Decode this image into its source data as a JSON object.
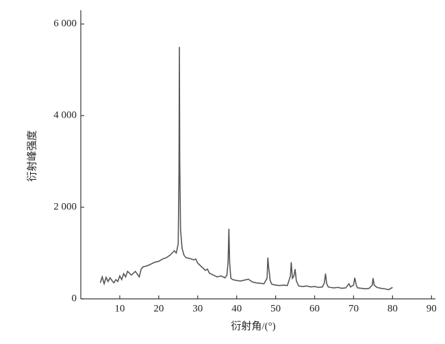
{
  "chart_data": {
    "type": "line",
    "xlabel": "衍射角/(°)",
    "ylabel": "衍射峰强度",
    "xlim": [
      0,
      91
    ],
    "xticks": [
      10,
      20,
      30,
      40,
      50,
      60,
      70,
      80,
      90
    ],
    "ylim": [
      0,
      6300
    ],
    "yticks": [
      {
        "value": 0,
        "label": "0"
      },
      {
        "value": 2000,
        "label": "2 000"
      },
      {
        "value": 4000,
        "label": "4 000"
      },
      {
        "value": 6000,
        "label": "6 000"
      }
    ],
    "grid": false,
    "series": [
      {
        "color": "#555555",
        "x": [
          5,
          5.5,
          6,
          6.5,
          7,
          7.5,
          8,
          8.5,
          9,
          9.5,
          10,
          10.5,
          11,
          11.5,
          12,
          13,
          14,
          15,
          15.5,
          16,
          17,
          18,
          19,
          20,
          21,
          22,
          23,
          24,
          24.5,
          25,
          25.2,
          25.3,
          25.4,
          25.6,
          26,
          26.5,
          27,
          28,
          29,
          29.5,
          30,
          31,
          32,
          32.5,
          33,
          34,
          35,
          36,
          37,
          37.5,
          37.8,
          38,
          38.2,
          38.5,
          39,
          40,
          41,
          42,
          43,
          44,
          45,
          46,
          47,
          47.8,
          48,
          48.2,
          48.6,
          49,
          50,
          51,
          52,
          53,
          53.8,
          54,
          54.3,
          54.7,
          55,
          55.3,
          55.8,
          56,
          57,
          58,
          59,
          60,
          61,
          62,
          62.5,
          62.8,
          63.1,
          63.5,
          64,
          65,
          66,
          67,
          68,
          68.8,
          69.2,
          70,
          70.3,
          70.7,
          71,
          72,
          73,
          74,
          74.8,
          75,
          75.3,
          76,
          77,
          78,
          79,
          80
        ],
        "values": [
          350,
          480,
          330,
          470,
          380,
          460,
          400,
          350,
          420,
          380,
          500,
          420,
          550,
          480,
          600,
          520,
          600,
          480,
          650,
          700,
          720,
          760,
          800,
          820,
          870,
          900,
          960,
          1050,
          1000,
          1200,
          2800,
          5500,
          3000,
          1500,
          1100,
          950,
          900,
          880,
          850,
          870,
          780,
          700,
          620,
          650,
          560,
          520,
          480,
          500,
          460,
          520,
          800,
          1530,
          800,
          450,
          420,
          400,
          390,
          410,
          430,
          370,
          350,
          340,
          330,
          450,
          900,
          700,
          400,
          320,
          300,
          290,
          300,
          290,
          500,
          800,
          450,
          500,
          650,
          400,
          300,
          280,
          270,
          280,
          260,
          270,
          250,
          260,
          350,
          550,
          330,
          260,
          250,
          240,
          250,
          230,
          240,
          330,
          260,
          300,
          460,
          300,
          240,
          230,
          220,
          230,
          300,
          450,
          300,
          250,
          230,
          220,
          200,
          250
        ]
      }
    ]
  }
}
